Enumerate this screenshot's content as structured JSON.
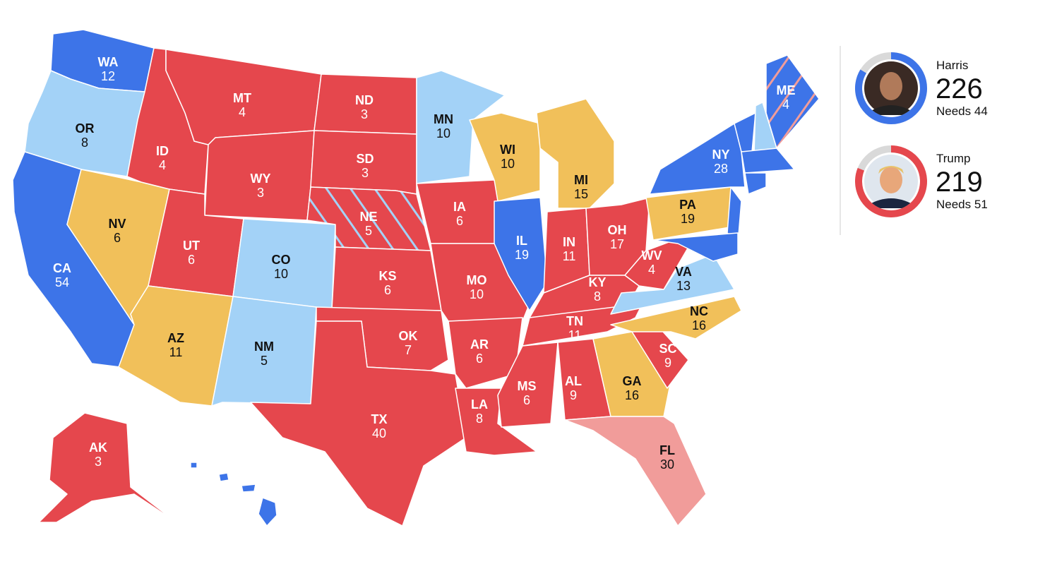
{
  "candidates": [
    {
      "name": "Harris",
      "votes": 226,
      "needs": {
        "value": 44,
        "label": "Needs 44"
      },
      "color": "#3d74e8"
    },
    {
      "name": "Trump",
      "votes": 219,
      "needs": {
        "value": 51,
        "label": "Needs 51"
      },
      "color": "#e5474d"
    }
  ],
  "states": [
    {
      "abbr": "WA",
      "votes": 12
    },
    {
      "abbr": "OR",
      "votes": 8
    },
    {
      "abbr": "CA",
      "votes": 54
    },
    {
      "abbr": "NV",
      "votes": 6
    },
    {
      "abbr": "ID",
      "votes": 4
    },
    {
      "abbr": "MT",
      "votes": 4
    },
    {
      "abbr": "WY",
      "votes": 3
    },
    {
      "abbr": "UT",
      "votes": 6
    },
    {
      "abbr": "AZ",
      "votes": 11
    },
    {
      "abbr": "CO",
      "votes": 10
    },
    {
      "abbr": "NM",
      "votes": 5
    },
    {
      "abbr": "ND",
      "votes": 3
    },
    {
      "abbr": "SD",
      "votes": 3
    },
    {
      "abbr": "NE",
      "votes": 5
    },
    {
      "abbr": "KS",
      "votes": 6
    },
    {
      "abbr": "OK",
      "votes": 7
    },
    {
      "abbr": "TX",
      "votes": 40
    },
    {
      "abbr": "MN",
      "votes": 10
    },
    {
      "abbr": "IA",
      "votes": 6
    },
    {
      "abbr": "MO",
      "votes": 10
    },
    {
      "abbr": "AR",
      "votes": 6
    },
    {
      "abbr": "LA",
      "votes": 8
    },
    {
      "abbr": "WI",
      "votes": 10
    },
    {
      "abbr": "IL",
      "votes": 19
    },
    {
      "abbr": "MI",
      "votes": 15
    },
    {
      "abbr": "IN",
      "votes": 11
    },
    {
      "abbr": "OH",
      "votes": 17
    },
    {
      "abbr": "KY",
      "votes": 8
    },
    {
      "abbr": "TN",
      "votes": 11
    },
    {
      "abbr": "MS",
      "votes": 6
    },
    {
      "abbr": "AL",
      "votes": 9
    },
    {
      "abbr": "GA",
      "votes": 16
    },
    {
      "abbr": "FL",
      "votes": 30
    },
    {
      "abbr": "SC",
      "votes": 9
    },
    {
      "abbr": "NC",
      "votes": 16
    },
    {
      "abbr": "VA",
      "votes": 13
    },
    {
      "abbr": "WV",
      "votes": 4
    },
    {
      "abbr": "PA",
      "votes": 19
    },
    {
      "abbr": "NY",
      "votes": 28
    },
    {
      "abbr": "ME",
      "votes": 4
    },
    {
      "abbr": "AK",
      "votes": 3
    }
  ]
}
